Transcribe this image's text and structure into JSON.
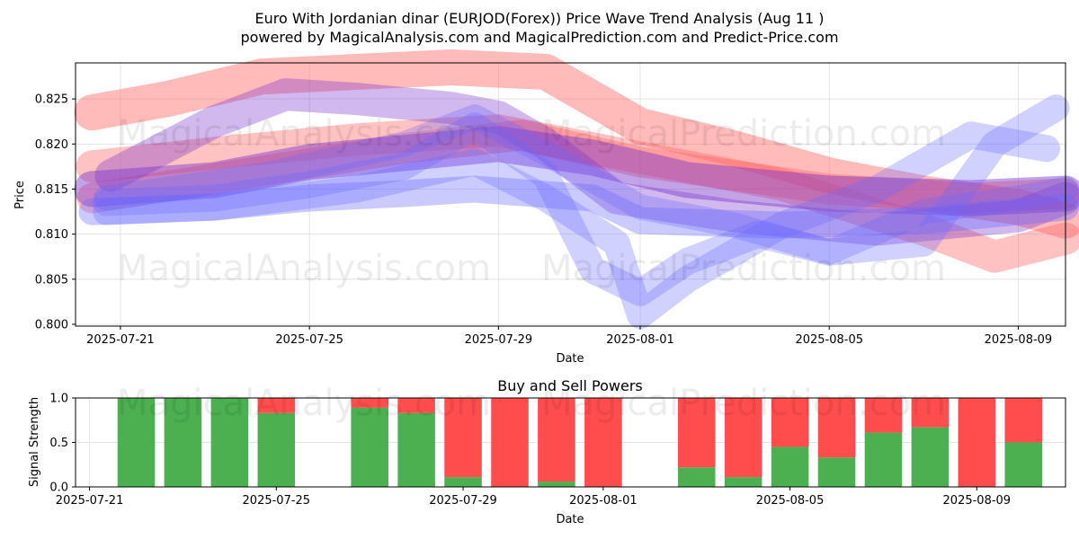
{
  "title_line1": "Euro With Jordanian dinar (EURJOD(Forex)) Price Wave Trend Analysis (Aug 11 )",
  "title_line2": "powered by MagicalAnalysis.com and MagicalPrediction.com and Predict-Price.com",
  "watermarks": [
    "MagicalAnalysis.com",
    "MagicalPrediction.com"
  ],
  "colors": {
    "red_wave": "#ff6666",
    "blue_wave": "#6666ff",
    "purple_wave": "#7a33cc",
    "buy": "#4caf50",
    "sell": "#ff4d4d"
  },
  "chart_data": [
    {
      "type": "line",
      "title": "",
      "xlabel": "Date",
      "ylabel": "Price",
      "ylim": [
        0.7998,
        0.829
      ],
      "xlim_days": [
        -0.95,
        20.0
      ],
      "x_ticks": [
        {
          "day": 0,
          "label": "2025-07-21"
        },
        {
          "day": 4,
          "label": "2025-07-25"
        },
        {
          "day": 8,
          "label": "2025-07-29"
        },
        {
          "day": 11,
          "label": "2025-08-01"
        },
        {
          "day": 15,
          "label": "2025-08-05"
        },
        {
          "day": 19,
          "label": "2025-08-09"
        }
      ],
      "y_ticks": [
        0.8,
        0.805,
        0.81,
        0.815,
        0.82,
        0.825
      ],
      "grid": true,
      "note": "x values are days since 2025-07-21",
      "series": [
        {
          "name": "red-wave-1",
          "color": "red",
          "width": 40,
          "opacity": 0.45,
          "points": [
            [
              -0.6,
              0.8235
            ],
            [
              1,
              0.825
            ],
            [
              3,
              0.8275
            ],
            [
              5,
              0.828
            ],
            [
              7,
              0.8285
            ],
            [
              9,
              0.828
            ],
            [
              11,
              0.822
            ],
            [
              13,
              0.8195
            ],
            [
              15,
              0.8165
            ],
            [
              17,
              0.8145
            ],
            [
              19,
              0.813
            ],
            [
              20,
              0.8115
            ]
          ]
        },
        {
          "name": "red-wave-2",
          "color": "red",
          "width": 36,
          "opacity": 0.4,
          "points": [
            [
              -0.6,
              0.8175
            ],
            [
              2,
              0.819
            ],
            [
              5,
              0.8205
            ],
            [
              8,
              0.8215
            ],
            [
              11,
              0.8185
            ],
            [
              14,
              0.8155
            ],
            [
              17,
              0.8105
            ],
            [
              18.5,
              0.8075
            ],
            [
              20,
              0.8095
            ]
          ]
        },
        {
          "name": "red-wave-3",
          "color": "red",
          "width": 34,
          "opacity": 0.4,
          "points": [
            [
              -0.6,
              0.814
            ],
            [
              3,
              0.817
            ],
            [
              6,
              0.8195
            ],
            [
              8.5,
              0.821
            ],
            [
              11,
              0.818
            ],
            [
              15,
              0.815
            ],
            [
              18,
              0.814
            ],
            [
              20,
              0.8145
            ]
          ]
        },
        {
          "name": "purple-wave-1",
          "color": "purple",
          "width": 36,
          "opacity": 0.35,
          "points": [
            [
              -0.2,
              0.8165
            ],
            [
              2,
              0.8225
            ],
            [
              3.5,
              0.8255
            ],
            [
              5,
              0.825
            ],
            [
              7,
              0.824
            ],
            [
              8,
              0.823
            ],
            [
              9,
              0.82
            ],
            [
              10.5,
              0.814
            ],
            [
              13,
              0.812
            ],
            [
              16,
              0.8105
            ],
            [
              19,
              0.812
            ],
            [
              20,
              0.814
            ]
          ]
        },
        {
          "name": "purple-wave-2",
          "color": "purple",
          "width": 40,
          "opacity": 0.45,
          "points": [
            [
              -0.6,
              0.815
            ],
            [
              2,
              0.816
            ],
            [
              4,
              0.818
            ],
            [
              7,
              0.8195
            ],
            [
              8,
              0.82
            ],
            [
              10,
              0.8185
            ],
            [
              12,
              0.816
            ],
            [
              15,
              0.8145
            ],
            [
              18,
              0.814
            ],
            [
              20,
              0.8145
            ]
          ]
        },
        {
          "name": "blue-wave-1",
          "color": "blue",
          "width": 30,
          "opacity": 0.3,
          "points": [
            [
              -0.3,
              0.8135
            ],
            [
              2,
              0.814
            ],
            [
              4,
              0.8155
            ],
            [
              6,
              0.8175
            ],
            [
              7.5,
              0.822
            ],
            [
              9,
              0.8165
            ],
            [
              10,
              0.806
            ],
            [
              11,
              0.8035
            ],
            [
              12,
              0.807
            ],
            [
              13.5,
              0.81
            ],
            [
              15,
              0.808
            ],
            [
              17,
              0.809
            ],
            [
              18.5,
              0.82
            ],
            [
              19.8,
              0.824
            ]
          ]
        },
        {
          "name": "blue-wave-2",
          "color": "blue",
          "width": 30,
          "opacity": 0.3,
          "points": [
            [
              -0.3,
              0.8125
            ],
            [
              2,
              0.813
            ],
            [
              5,
              0.815
            ],
            [
              7.5,
              0.818
            ],
            [
              9,
              0.814
            ],
            [
              10.5,
              0.809
            ],
            [
              11,
              0.801
            ],
            [
              12,
              0.805
            ],
            [
              14,
              0.811
            ],
            [
              16,
              0.815
            ],
            [
              18,
              0.821
            ],
            [
              19.6,
              0.8195
            ]
          ]
        },
        {
          "name": "blue-wave-3",
          "color": "blue",
          "width": 28,
          "opacity": 0.3,
          "points": [
            [
              -0.3,
              0.814
            ],
            [
              3,
              0.8165
            ],
            [
              6,
              0.82
            ],
            [
              7.5,
              0.823
            ],
            [
              9,
              0.819
            ],
            [
              11,
              0.813
            ],
            [
              13,
              0.811
            ],
            [
              15,
              0.808
            ],
            [
              17,
              0.8125
            ],
            [
              19,
              0.814
            ],
            [
              20,
              0.815
            ]
          ]
        },
        {
          "name": "blue-wave-4",
          "color": "blue",
          "width": 30,
          "opacity": 0.35,
          "points": [
            [
              -0.6,
              0.8125
            ],
            [
              2,
              0.813
            ],
            [
              4,
              0.814
            ],
            [
              6,
              0.8145
            ],
            [
              7.5,
              0.815
            ],
            [
              10,
              0.814
            ],
            [
              11,
              0.8115
            ],
            [
              14,
              0.811
            ],
            [
              17,
              0.8115
            ],
            [
              19,
              0.8125
            ],
            [
              20,
              0.813
            ]
          ]
        }
      ]
    },
    {
      "type": "bar",
      "title": "Buy and Sell Powers",
      "xlabel": "Date",
      "ylabel": "Signal Strength",
      "ylim": [
        0.0,
        1.0
      ],
      "y_ticks": [
        0.0,
        0.5,
        1.0
      ],
      "xlim_days": [
        -0.3,
        20.9
      ],
      "x_ticks": [
        {
          "day": 0,
          "label": "2025-07-21"
        },
        {
          "day": 4,
          "label": "2025-07-25"
        },
        {
          "day": 8,
          "label": "2025-07-29"
        },
        {
          "day": 11,
          "label": "2025-08-01"
        },
        {
          "day": 15,
          "label": "2025-08-05"
        },
        {
          "day": 19,
          "label": "2025-08-09"
        }
      ],
      "note": "x values are days since 2025-07-21",
      "series": [
        {
          "name": "Buy",
          "color": "green",
          "days": [
            1,
            2,
            3,
            4,
            6,
            7,
            8,
            9,
            10,
            11,
            13,
            14,
            15,
            16,
            17,
            18,
            19,
            20
          ],
          "values": [
            1.0,
            1.0,
            1.0,
            0.83,
            0.89,
            0.83,
            0.11,
            0.0,
            0.06,
            0.0,
            0.22,
            0.11,
            0.45,
            0.33,
            0.61,
            0.67,
            0.0,
            0.5
          ]
        },
        {
          "name": "Sell",
          "color": "red",
          "days": [
            1,
            2,
            3,
            4,
            6,
            7,
            8,
            9,
            10,
            11,
            13,
            14,
            15,
            16,
            17,
            18,
            19,
            20
          ],
          "values": [
            0.0,
            0.0,
            0.0,
            0.17,
            0.11,
            0.17,
            0.89,
            1.0,
            0.94,
            1.0,
            0.78,
            0.89,
            0.55,
            0.67,
            0.39,
            0.33,
            1.0,
            0.5
          ]
        }
      ]
    }
  ]
}
